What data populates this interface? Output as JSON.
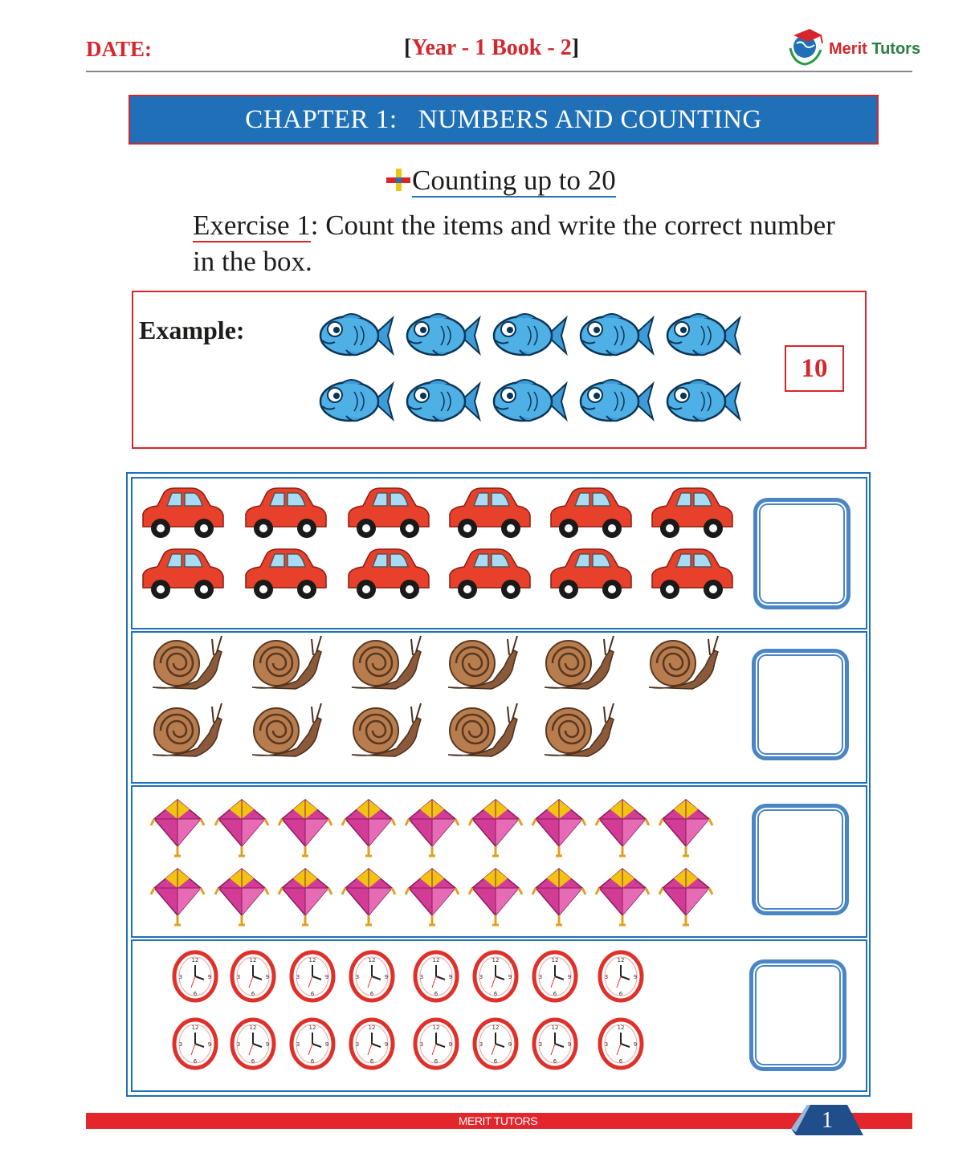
{
  "header": {
    "date_label": "DATE:",
    "bracket_open": "[",
    "book_title": "Year - 1 Book - 2",
    "bracket_close": "]",
    "logo_word1": "Merit",
    "logo_word2": " Tutors",
    "logo_icon": "globe-graduation-cap-icon"
  },
  "chapter": {
    "title": "CHAPTER 1:   NUMBERS AND COUNTING"
  },
  "section": {
    "title": "Counting up to 20",
    "icon": "plus-cross-icon"
  },
  "instruction": {
    "exercise_label": "Exercise 1",
    "text": ": Count the items and write the correct number in the box."
  },
  "example": {
    "label": "Example:",
    "item": "fish",
    "count_shown": 10,
    "answer": "10"
  },
  "rows": [
    {
      "item": "car",
      "count_shown": 12,
      "answer": ""
    },
    {
      "item": "snail",
      "count_shown": 11,
      "answer": ""
    },
    {
      "item": "kite",
      "count_shown": 18,
      "answer": ""
    },
    {
      "item": "clock",
      "count_shown": 16,
      "answer": ""
    }
  ],
  "colors": {
    "red": "#d6262b",
    "blue": "#1f70b7",
    "box_blue": "#4a86c5"
  },
  "footer": {
    "brand": "MERIT TUTORS",
    "page_number": "1"
  }
}
